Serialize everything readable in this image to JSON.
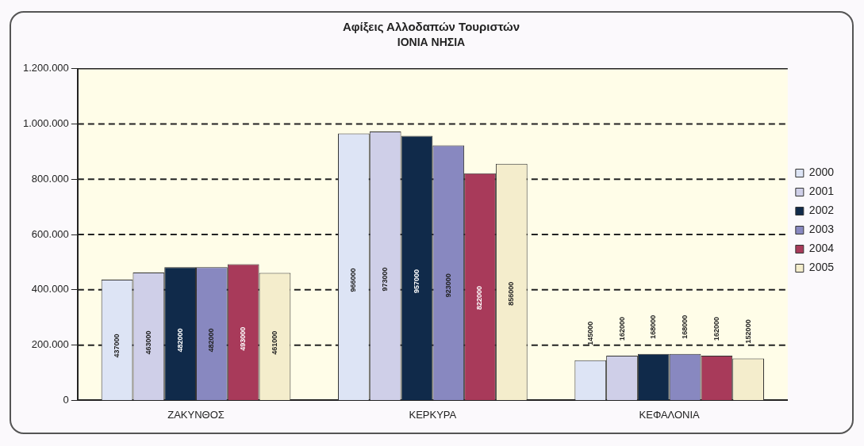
{
  "chart_data": {
    "type": "bar",
    "title": "Αφίξεις Αλλοδαπών Τουριστών",
    "subtitle": "ΙΟΝΙΑ ΝΗΣΙΑ",
    "categories": [
      "ΖΑΚΥΝΘΟΣ",
      "ΚΕΡΚΥΡΑ",
      "ΚΕΦΑΛΟΝΙΑ"
    ],
    "series": [
      {
        "name": "2000",
        "color": "#dde4f5",
        "values": [
          437000,
          966000,
          145000
        ]
      },
      {
        "name": "2001",
        "color": "#cfcfe8",
        "values": [
          463000,
          973000,
          162000
        ]
      },
      {
        "name": "2002",
        "color": "#102a4a",
        "values": [
          482000,
          957000,
          168000
        ]
      },
      {
        "name": "2003",
        "color": "#8888c0",
        "values": [
          482000,
          923000,
          168000
        ]
      },
      {
        "name": "2004",
        "color": "#a83a5a",
        "values": [
          493000,
          822000,
          162000
        ]
      },
      {
        "name": "2005",
        "color": "#f4edcc",
        "values": [
          461000,
          856000,
          152000
        ]
      }
    ],
    "ylim": [
      0,
      1200000
    ],
    "yticks": [
      {
        "value": 0,
        "label": "0"
      },
      {
        "value": 200000,
        "label": "200.000"
      },
      {
        "value": 400000,
        "label": "400.000"
      },
      {
        "value": 600000,
        "label": "600.000"
      },
      {
        "value": 800000,
        "label": "800.000"
      },
      {
        "value": 1000000,
        "label": "1.000.000"
      },
      {
        "value": 1200000,
        "label": "1.200.000"
      }
    ],
    "grid": "y",
    "legend": "right",
    "data_labels": true
  }
}
